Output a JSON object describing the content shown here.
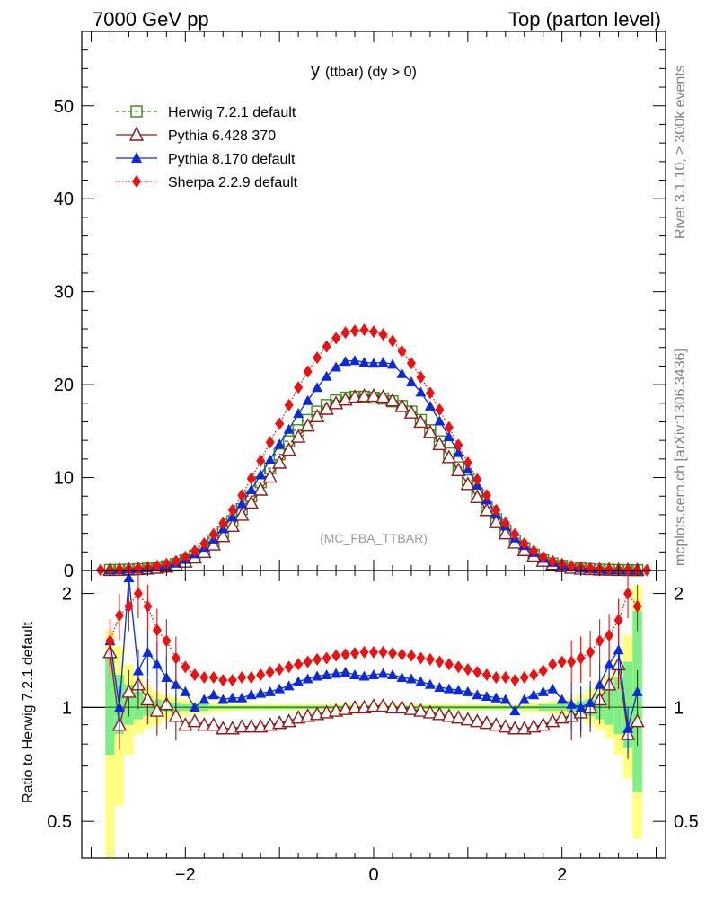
{
  "header": {
    "left": "7000 GeV pp",
    "right": "Top (parton level)"
  },
  "side_labels": {
    "rivet": "Rivet 3.1.10, ≥ 300k events",
    "mcplots": "mcplots.cern.ch [arXiv:1306.3436]"
  },
  "chart_data": [
    {
      "type": "line",
      "title": "y (ttbar) (dy > 0)",
      "title_main": "y",
      "title_sub": "(ttbar) (dy > 0)",
      "analysis_label": "(MC_FBA_TTBAR)",
      "xlabel": "",
      "ylabel": "",
      "xlim": [
        -3.1,
        3.1
      ],
      "ylim": [
        0,
        58
      ],
      "x_ticks": [
        "−2",
        "0",
        "2"
      ],
      "y_ticks": [
        "0",
        "10",
        "20",
        "30",
        "40",
        "50"
      ],
      "legend_position": "top-left",
      "series": [
        {
          "name": "Herwig 7.2.1 default",
          "color": "#3a8f1e",
          "marker": "open-square",
          "style": "dashed-step",
          "x": [
            -2.8,
            -2.7,
            -2.6,
            -2.5,
            -2.4,
            -2.3,
            -2.2,
            -2.1,
            -2.0,
            -1.9,
            -1.8,
            -1.7,
            -1.6,
            -1.5,
            -1.4,
            -1.3,
            -1.2,
            -1.1,
            -1.0,
            -0.9,
            -0.8,
            -0.7,
            -0.6,
            -0.5,
            -0.4,
            -0.3,
            -0.2,
            -0.1,
            0.0,
            0.1,
            0.2,
            0.3,
            0.4,
            0.5,
            0.6,
            0.7,
            0.8,
            0.9,
            1.0,
            1.1,
            1.2,
            1.3,
            1.4,
            1.5,
            1.6,
            1.7,
            1.8,
            1.9,
            2.0,
            2.1,
            2.2,
            2.3,
            2.4,
            2.5,
            2.6,
            2.7,
            2.8
          ],
          "values": [
            0.05,
            0.07,
            0.1,
            0.14,
            0.2,
            0.3,
            0.45,
            0.7,
            1.1,
            1.6,
            2.3,
            3.1,
            4.1,
            5.3,
            6.6,
            8.0,
            9.5,
            11.0,
            12.5,
            13.9,
            15.1,
            16.2,
            17.1,
            17.8,
            18.3,
            18.6,
            18.7,
            18.7,
            18.6,
            18.5,
            18.2,
            17.7,
            17.1,
            16.2,
            15.1,
            13.9,
            12.6,
            11.1,
            9.7,
            8.2,
            6.8,
            5.5,
            4.3,
            3.2,
            2.4,
            1.7,
            1.1,
            0.75,
            0.5,
            0.33,
            0.22,
            0.15,
            0.1,
            0.07,
            0.05,
            0.04,
            0.03
          ]
        },
        {
          "name": "Pythia 6.428 370",
          "color": "#8b1a1a",
          "marker": "open-triangle",
          "style": "solid",
          "x": [
            -2.8,
            -2.7,
            -2.6,
            -2.5,
            -2.4,
            -2.3,
            -2.2,
            -2.1,
            -2.0,
            -1.9,
            -1.8,
            -1.7,
            -1.6,
            -1.5,
            -1.4,
            -1.3,
            -1.2,
            -1.1,
            -1.0,
            -0.9,
            -0.8,
            -0.7,
            -0.6,
            -0.5,
            -0.4,
            -0.3,
            -0.2,
            -0.1,
            0.0,
            0.1,
            0.2,
            0.3,
            0.4,
            0.5,
            0.6,
            0.7,
            0.8,
            0.9,
            1.0,
            1.1,
            1.2,
            1.3,
            1.4,
            1.5,
            1.6,
            1.7,
            1.8,
            1.9,
            2.0,
            2.1,
            2.2,
            2.3,
            2.4,
            2.5,
            2.6,
            2.7,
            2.8
          ],
          "values": [
            0.07,
            0.08,
            0.12,
            0.16,
            0.22,
            0.3,
            0.42,
            0.62,
            0.95,
            1.4,
            2.0,
            2.8,
            3.7,
            4.8,
            6.0,
            7.3,
            8.7,
            10.1,
            11.6,
            13.0,
            14.4,
            15.6,
            16.6,
            17.4,
            18.0,
            18.4,
            18.7,
            18.8,
            18.8,
            18.7,
            18.3,
            17.7,
            17.0,
            16.0,
            14.9,
            13.6,
            12.2,
            10.8,
            9.3,
            7.9,
            6.5,
            5.2,
            4.0,
            3.0,
            2.2,
            1.6,
            1.05,
            0.7,
            0.47,
            0.3,
            0.2,
            0.15,
            0.12,
            0.1,
            0.08,
            0.07,
            0.06
          ]
        },
        {
          "name": "Pythia 8.170 default",
          "color": "#0a2adb",
          "marker": "filled-triangle",
          "style": "solid",
          "x": [
            -2.8,
            -2.7,
            -2.6,
            -2.5,
            -2.4,
            -2.3,
            -2.2,
            -2.1,
            -2.0,
            -1.9,
            -1.8,
            -1.7,
            -1.6,
            -1.5,
            -1.4,
            -1.3,
            -1.2,
            -1.1,
            -1.0,
            -0.9,
            -0.8,
            -0.7,
            -0.6,
            -0.5,
            -0.4,
            -0.3,
            -0.2,
            -0.1,
            0.0,
            0.1,
            0.2,
            0.3,
            0.4,
            0.5,
            0.6,
            0.7,
            0.8,
            0.9,
            1.0,
            1.1,
            1.2,
            1.3,
            1.4,
            1.5,
            1.6,
            1.7,
            1.8,
            1.9,
            2.0,
            2.1,
            2.2,
            2.3,
            2.4,
            2.5,
            2.6,
            2.7,
            2.8
          ],
          "values": [
            0.07,
            0.1,
            0.15,
            0.19,
            0.28,
            0.4,
            0.55,
            0.8,
            1.2,
            1.8,
            2.5,
            3.4,
            4.5,
            5.8,
            7.2,
            8.7,
            10.3,
            11.9,
            13.6,
            15.2,
            16.9,
            18.3,
            19.7,
            20.9,
            21.9,
            22.5,
            22.6,
            22.4,
            22.3,
            22.4,
            22.2,
            21.2,
            20.3,
            19.2,
            17.7,
            16.1,
            14.4,
            12.7,
            10.9,
            9.2,
            7.6,
            6.1,
            4.8,
            3.5,
            2.7,
            1.95,
            1.3,
            0.88,
            0.58,
            0.38,
            0.25,
            0.18,
            0.13,
            0.09,
            0.07,
            0.05,
            0.04
          ]
        },
        {
          "name": "Sherpa 2.2.9 default",
          "color": "#ee1111",
          "marker": "filled-diamond",
          "style": "dotted",
          "x": [
            -2.9,
            -2.8,
            -2.7,
            -2.6,
            -2.5,
            -2.4,
            -2.3,
            -2.2,
            -2.1,
            -2.0,
            -1.9,
            -1.8,
            -1.7,
            -1.6,
            -1.5,
            -1.4,
            -1.3,
            -1.2,
            -1.1,
            -1.0,
            -0.9,
            -0.8,
            -0.7,
            -0.6,
            -0.5,
            -0.4,
            -0.3,
            -0.2,
            -0.1,
            0.0,
            0.1,
            0.2,
            0.3,
            0.4,
            0.5,
            0.6,
            0.7,
            0.8,
            0.9,
            1.0,
            1.1,
            1.2,
            1.3,
            1.4,
            1.5,
            1.6,
            1.7,
            1.8,
            1.9,
            2.0,
            2.1,
            2.2,
            2.3,
            2.4,
            2.5,
            2.6,
            2.7,
            2.8,
            2.9
          ],
          "values": [
            0.05,
            0.08,
            0.12,
            0.17,
            0.25,
            0.35,
            0.5,
            0.7,
            1.0,
            1.45,
            2.1,
            2.9,
            3.9,
            5.1,
            6.5,
            8.1,
            9.9,
            11.8,
            13.8,
            15.8,
            17.8,
            19.7,
            21.4,
            22.9,
            24.1,
            25.0,
            25.6,
            25.8,
            25.9,
            25.7,
            25.4,
            24.7,
            23.6,
            22.3,
            20.8,
            19.1,
            17.3,
            15.4,
            13.5,
            11.6,
            9.8,
            8.1,
            6.5,
            5.1,
            3.9,
            2.9,
            2.1,
            1.45,
            1.0,
            0.7,
            0.48,
            0.34,
            0.24,
            0.17,
            0.12,
            0.09,
            0.07,
            0.05,
            0.04
          ]
        }
      ]
    },
    {
      "type": "line",
      "title": "Ratio to Herwig 7.2.1 default",
      "ylabel": "Ratio to Herwig 7.2.1 default",
      "xlim": [
        -3.1,
        3.1
      ],
      "ylim": [
        0.4,
        2.3
      ],
      "y_scale": "log",
      "x_ticks": [
        "−2",
        "0",
        "2"
      ],
      "y_ticks_left": [
        "0.5",
        "1",
        "2"
      ],
      "y_ticks_right": [
        "0.5",
        "1",
        "2"
      ],
      "x": [
        -2.8,
        -2.7,
        -2.6,
        -2.5,
        -2.4,
        -2.3,
        -2.2,
        -2.1,
        -2.0,
        -1.9,
        -1.8,
        -1.7,
        -1.6,
        -1.5,
        -1.4,
        -1.3,
        -1.2,
        -1.1,
        -1.0,
        -0.9,
        -0.8,
        -0.7,
        -0.6,
        -0.5,
        -0.4,
        -0.3,
        -0.2,
        -0.1,
        0.0,
        0.1,
        0.2,
        0.3,
        0.4,
        0.5,
        0.6,
        0.7,
        0.8,
        0.9,
        1.0,
        1.1,
        1.2,
        1.3,
        1.4,
        1.5,
        1.6,
        1.7,
        1.8,
        1.9,
        2.0,
        2.1,
        2.2,
        2.3,
        2.4,
        2.5,
        2.6,
        2.7,
        2.8
      ],
      "band_yellow": [
        0.38,
        0.55,
        0.75,
        0.85,
        0.88,
        0.9,
        0.93,
        0.94,
        0.95,
        0.96,
        0.96,
        0.97,
        0.97,
        0.98,
        0.98,
        0.98,
        0.98,
        0.98,
        0.98,
        0.98,
        0.98,
        0.98,
        0.98,
        0.98,
        0.98,
        0.98,
        0.98,
        0.98,
        0.98,
        0.98,
        0.98,
        0.98,
        0.98,
        0.98,
        0.98,
        0.98,
        0.98,
        0.98,
        0.98,
        0.98,
        0.98,
        0.98,
        0.98,
        0.98,
        0.97,
        0.97,
        0.97,
        0.96,
        0.95,
        0.94,
        0.92,
        0.9,
        0.87,
        0.83,
        0.75,
        0.65,
        0.45
      ],
      "band_yellow_hi": [
        1.6,
        1.45,
        1.3,
        1.2,
        1.14,
        1.1,
        1.08,
        1.06,
        1.05,
        1.04,
        1.04,
        1.03,
        1.03,
        1.02,
        1.02,
        1.02,
        1.02,
        1.02,
        1.02,
        1.02,
        1.02,
        1.02,
        1.02,
        1.02,
        1.02,
        1.02,
        1.02,
        1.02,
        1.02,
        1.02,
        1.02,
        1.02,
        1.02,
        1.02,
        1.02,
        1.02,
        1.02,
        1.02,
        1.02,
        1.02,
        1.02,
        1.02,
        1.02,
        1.02,
        1.03,
        1.03,
        1.03,
        1.04,
        1.05,
        1.06,
        1.09,
        1.12,
        1.16,
        1.22,
        1.35,
        1.55,
        2.1
      ],
      "band_green": [
        0.75,
        0.85,
        0.9,
        0.93,
        0.95,
        0.96,
        0.97,
        0.97,
        0.98,
        0.98,
        0.98,
        0.99,
        0.99,
        0.99,
        0.99,
        0.99,
        0.99,
        0.99,
        0.99,
        0.99,
        0.99,
        0.99,
        0.99,
        0.99,
        0.99,
        0.99,
        0.99,
        0.99,
        0.99,
        0.99,
        0.99,
        0.99,
        0.99,
        0.99,
        0.99,
        0.99,
        0.99,
        0.99,
        0.99,
        0.99,
        0.99,
        0.99,
        0.99,
        0.99,
        0.99,
        0.99,
        0.98,
        0.98,
        0.98,
        0.97,
        0.96,
        0.95,
        0.93,
        0.9,
        0.85,
        0.78,
        0.6
      ],
      "band_green_hi": [
        1.35,
        1.22,
        1.15,
        1.1,
        1.07,
        1.05,
        1.04,
        1.03,
        1.02,
        1.02,
        1.02,
        1.01,
        1.01,
        1.01,
        1.01,
        1.01,
        1.01,
        1.01,
        1.01,
        1.01,
        1.01,
        1.01,
        1.01,
        1.01,
        1.01,
        1.01,
        1.01,
        1.01,
        1.01,
        1.01,
        1.01,
        1.01,
        1.01,
        1.01,
        1.01,
        1.01,
        1.01,
        1.01,
        1.01,
        1.01,
        1.01,
        1.01,
        1.01,
        1.01,
        1.01,
        1.01,
        1.02,
        1.02,
        1.02,
        1.03,
        1.04,
        1.05,
        1.08,
        1.12,
        1.2,
        1.32,
        1.8
      ],
      "series": [
        {
          "name": "Pythia 6.428 370",
          "color": "#8b1a1a",
          "marker": "open-triangle",
          "values": [
            1.4,
            0.9,
            1.1,
            1.15,
            1.05,
            0.98,
            1.02,
            0.95,
            0.9,
            0.92,
            0.9,
            0.9,
            0.88,
            0.88,
            0.89,
            0.89,
            0.89,
            0.9,
            0.91,
            0.92,
            0.94,
            0.95,
            0.96,
            0.97,
            0.98,
            0.99,
            1.0,
            1.0,
            1.01,
            1.01,
            1.0,
            1.0,
            0.99,
            0.98,
            0.97,
            0.96,
            0.95,
            0.94,
            0.93,
            0.92,
            0.91,
            0.9,
            0.89,
            0.88,
            0.88,
            0.89,
            0.9,
            0.92,
            0.94,
            0.95,
            0.97,
            1.0,
            1.05,
            1.15,
            1.3,
            0.85,
            0.92
          ]
        },
        {
          "name": "Pythia 8.170 default",
          "color": "#0a2adb",
          "marker": "filled-triangle",
          "values": [
            1.5,
            1.0,
            2.2,
            1.25,
            1.4,
            1.3,
            1.2,
            1.15,
            1.1,
            1.0,
            1.05,
            1.08,
            1.05,
            1.06,
            1.06,
            1.08,
            1.09,
            1.1,
            1.12,
            1.14,
            1.17,
            1.19,
            1.21,
            1.22,
            1.23,
            1.24,
            1.22,
            1.21,
            1.22,
            1.23,
            1.22,
            1.2,
            1.19,
            1.17,
            1.15,
            1.13,
            1.12,
            1.11,
            1.1,
            1.08,
            1.07,
            1.06,
            1.05,
            0.98,
            1.05,
            1.08,
            1.1,
            1.12,
            1.05,
            1.02,
            1.0,
            1.03,
            1.15,
            1.3,
            1.42,
            0.88,
            1.1
          ]
        },
        {
          "name": "Sherpa 2.2.9 default",
          "color": "#ee1111",
          "marker": "filled-diamond",
          "values": [
            1.5,
            1.75,
            1.85,
            2.0,
            1.85,
            1.6,
            1.5,
            1.35,
            1.28,
            1.22,
            1.2,
            1.2,
            1.18,
            1.18,
            1.2,
            1.2,
            1.22,
            1.24,
            1.26,
            1.28,
            1.3,
            1.32,
            1.34,
            1.35,
            1.37,
            1.38,
            1.39,
            1.4,
            1.4,
            1.4,
            1.39,
            1.38,
            1.37,
            1.35,
            1.34,
            1.32,
            1.3,
            1.28,
            1.26,
            1.24,
            1.22,
            1.2,
            1.2,
            1.18,
            1.2,
            1.22,
            1.25,
            1.3,
            1.32,
            1.32,
            1.35,
            1.4,
            1.5,
            1.55,
            1.7,
            2.0,
            1.85
          ]
        }
      ]
    }
  ]
}
